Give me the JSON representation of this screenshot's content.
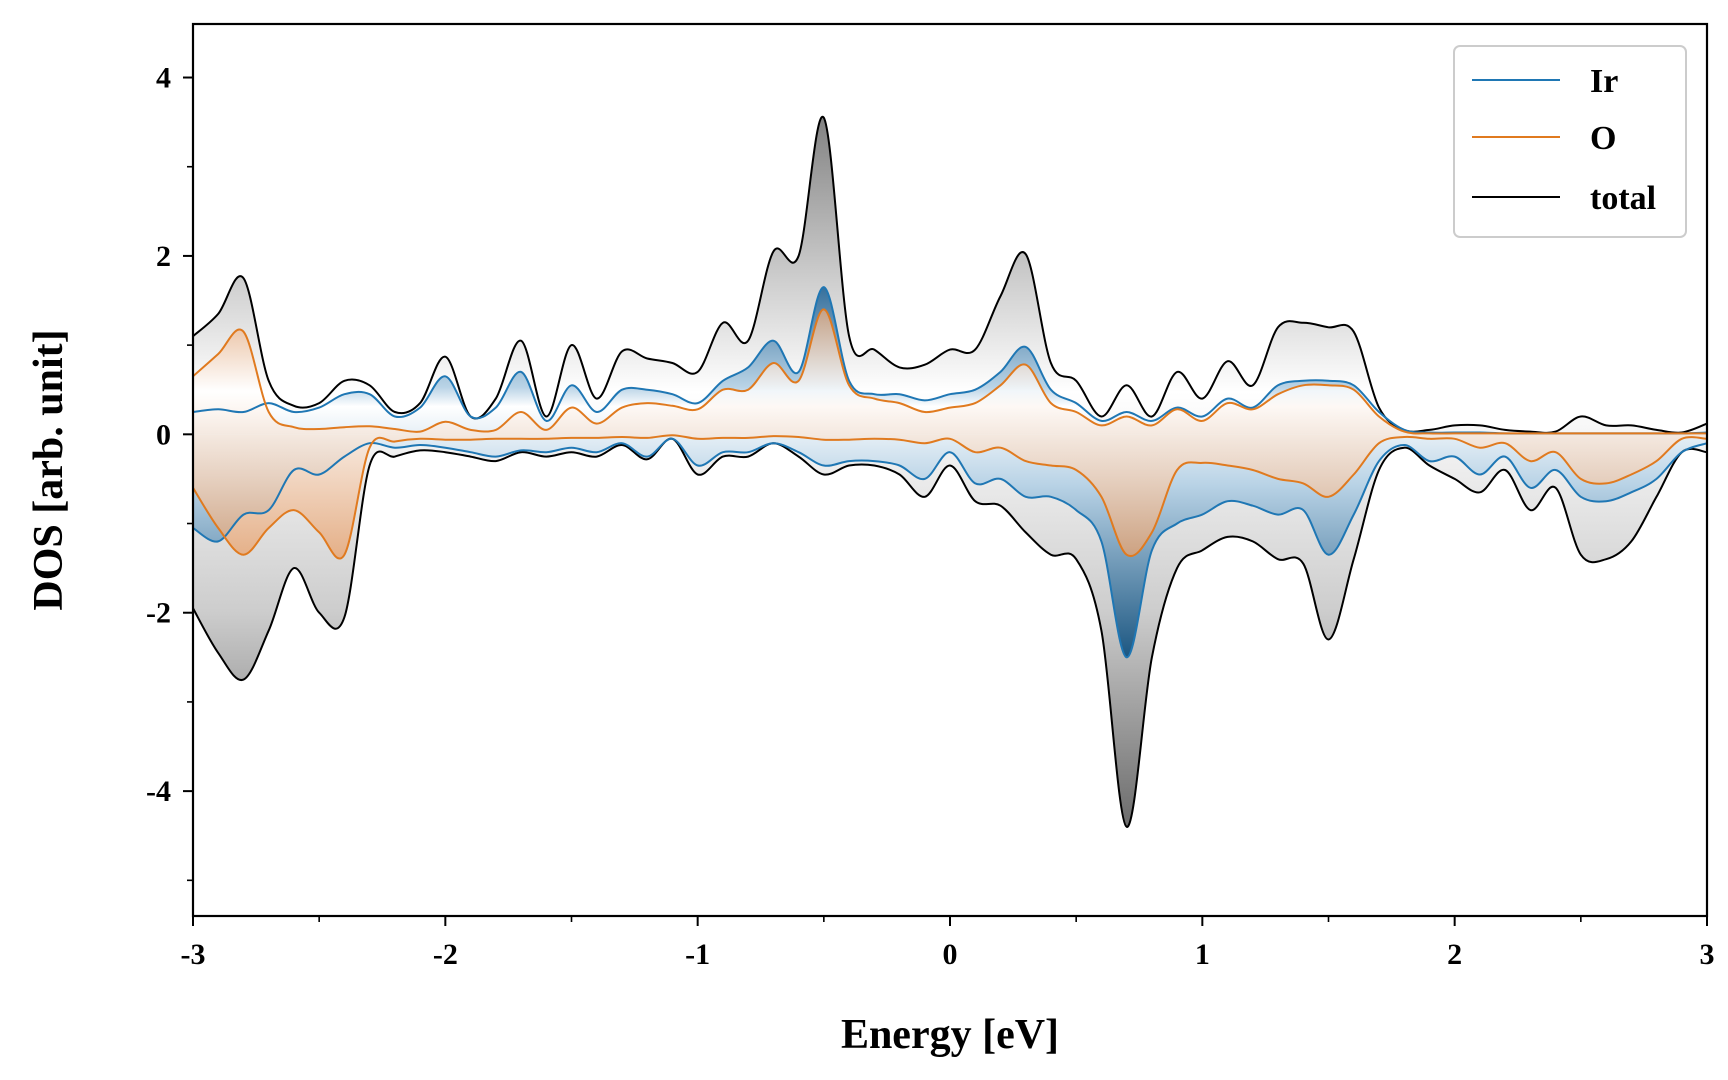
{
  "chart_data": {
    "type": "line",
    "title": "",
    "xlabel": "Energy [eV]",
    "ylabel": "DOS [arb. unit]",
    "xlim": [
      -3,
      3
    ],
    "ylim": [
      -5.4,
      4.6
    ],
    "x_ticks": [
      -3,
      -2,
      -1,
      0,
      1,
      2,
      3
    ],
    "x_tick_labels": [
      "-3",
      "-2",
      "-1",
      "0",
      "1",
      "2",
      "3"
    ],
    "y_ticks": [
      -4,
      -2,
      0,
      2,
      4
    ],
    "y_tick_labels": [
      "-4",
      "-2",
      "0",
      "2",
      "4"
    ],
    "legend_position": "top-right",
    "colors": {
      "Ir": "#1f77b4",
      "O": "#e07a1f",
      "total": "#000000"
    },
    "x": [
      -3.0,
      -2.9,
      -2.8,
      -2.7,
      -2.6,
      -2.5,
      -2.4,
      -2.3,
      -2.2,
      -2.1,
      -2.0,
      -1.9,
      -1.8,
      -1.7,
      -1.6,
      -1.5,
      -1.4,
      -1.3,
      -1.2,
      -1.1,
      -1.0,
      -0.9,
      -0.8,
      -0.7,
      -0.6,
      -0.5,
      -0.4,
      -0.3,
      -0.2,
      -0.1,
      0.0,
      0.1,
      0.2,
      0.3,
      0.4,
      0.5,
      0.6,
      0.7,
      0.8,
      0.9,
      1.0,
      1.1,
      1.2,
      1.3,
      1.4,
      1.5,
      1.6,
      1.7,
      1.8,
      1.9,
      2.0,
      2.1,
      2.2,
      2.3,
      2.4,
      2.5,
      2.6,
      2.7,
      2.8,
      2.9,
      3.0
    ],
    "series": [
      {
        "name": "Ir",
        "spin": "up",
        "values": [
          0.25,
          0.28,
          0.25,
          0.35,
          0.25,
          0.3,
          0.45,
          0.45,
          0.2,
          0.3,
          0.65,
          0.2,
          0.3,
          0.7,
          0.15,
          0.55,
          0.25,
          0.5,
          0.5,
          0.45,
          0.35,
          0.6,
          0.75,
          1.05,
          0.7,
          1.65,
          0.6,
          0.45,
          0.45,
          0.38,
          0.45,
          0.5,
          0.7,
          0.98,
          0.5,
          0.35,
          0.15,
          0.25,
          0.15,
          0.3,
          0.2,
          0.4,
          0.3,
          0.55,
          0.6,
          0.6,
          0.55,
          0.25,
          0.05,
          0.02,
          0.02,
          0.02,
          0.01,
          0.01,
          0.01,
          0.01,
          0.01,
          0.01,
          0.01,
          0.01,
          0.02
        ]
      },
      {
        "name": "Ir",
        "spin": "down",
        "values": [
          -1.05,
          -1.2,
          -0.9,
          -0.85,
          -0.4,
          -0.45,
          -0.25,
          -0.1,
          -0.15,
          -0.12,
          -0.15,
          -0.2,
          -0.25,
          -0.18,
          -0.2,
          -0.15,
          -0.2,
          -0.1,
          -0.25,
          -0.05,
          -0.35,
          -0.2,
          -0.2,
          -0.1,
          -0.2,
          -0.35,
          -0.3,
          -0.3,
          -0.35,
          -0.5,
          -0.2,
          -0.55,
          -0.5,
          -0.7,
          -0.7,
          -0.85,
          -1.2,
          -2.5,
          -1.3,
          -1.0,
          -0.9,
          -0.75,
          -0.8,
          -0.9,
          -0.85,
          -1.35,
          -0.9,
          -0.3,
          -0.12,
          -0.3,
          -0.25,
          -0.45,
          -0.25,
          -0.6,
          -0.4,
          -0.7,
          -0.75,
          -0.65,
          -0.5,
          -0.2,
          -0.1
        ]
      },
      {
        "name": "O",
        "spin": "up",
        "values": [
          0.65,
          0.9,
          1.15,
          0.25,
          0.08,
          0.06,
          0.08,
          0.09,
          0.06,
          0.03,
          0.14,
          0.05,
          0.05,
          0.25,
          0.05,
          0.3,
          0.12,
          0.3,
          0.35,
          0.32,
          0.28,
          0.5,
          0.5,
          0.8,
          0.6,
          1.4,
          0.55,
          0.4,
          0.35,
          0.25,
          0.3,
          0.35,
          0.55,
          0.78,
          0.35,
          0.25,
          0.1,
          0.2,
          0.1,
          0.28,
          0.15,
          0.35,
          0.28,
          0.45,
          0.55,
          0.55,
          0.5,
          0.2,
          0.03,
          0.01,
          0.01,
          0.01,
          0.01,
          0.01,
          0.01,
          0.01,
          0.01,
          0.01,
          0.01,
          0.01,
          0.01
        ]
      },
      {
        "name": "O",
        "spin": "down",
        "values": [
          -0.6,
          -1.05,
          -1.35,
          -1.05,
          -0.85,
          -1.1,
          -1.35,
          -0.15,
          -0.08,
          -0.05,
          -0.06,
          -0.06,
          -0.05,
          -0.05,
          -0.05,
          -0.04,
          -0.04,
          -0.03,
          -0.04,
          -0.01,
          -0.05,
          -0.04,
          -0.04,
          -0.02,
          -0.03,
          -0.06,
          -0.06,
          -0.05,
          -0.06,
          -0.1,
          -0.05,
          -0.2,
          -0.15,
          -0.3,
          -0.35,
          -0.4,
          -0.7,
          -1.35,
          -1.1,
          -0.4,
          -0.32,
          -0.35,
          -0.4,
          -0.5,
          -0.55,
          -0.7,
          -0.45,
          -0.1,
          -0.03,
          -0.05,
          -0.05,
          -0.15,
          -0.1,
          -0.3,
          -0.2,
          -0.5,
          -0.55,
          -0.45,
          -0.3,
          -0.05,
          -0.05
        ]
      },
      {
        "name": "total",
        "spin": "up",
        "values": [
          1.1,
          1.35,
          1.75,
          0.6,
          0.32,
          0.35,
          0.6,
          0.55,
          0.25,
          0.35,
          0.87,
          0.2,
          0.4,
          1.05,
          0.2,
          1.0,
          0.4,
          0.93,
          0.85,
          0.8,
          0.7,
          1.25,
          1.05,
          2.05,
          2.0,
          3.55,
          1.1,
          0.95,
          0.75,
          0.78,
          0.95,
          0.95,
          1.55,
          2.02,
          0.8,
          0.6,
          0.2,
          0.55,
          0.2,
          0.7,
          0.4,
          0.82,
          0.55,
          1.2,
          1.25,
          1.2,
          1.15,
          0.3,
          0.05,
          0.05,
          0.1,
          0.1,
          0.05,
          0.03,
          0.03,
          0.2,
          0.1,
          0.1,
          0.05,
          0.02,
          0.12
        ]
      },
      {
        "name": "total",
        "spin": "down",
        "values": [
          -1.95,
          -2.45,
          -2.75,
          -2.2,
          -1.5,
          -2.0,
          -2.05,
          -0.35,
          -0.25,
          -0.18,
          -0.2,
          -0.25,
          -0.3,
          -0.2,
          -0.25,
          -0.2,
          -0.25,
          -0.12,
          -0.28,
          -0.05,
          -0.45,
          -0.25,
          -0.25,
          -0.1,
          -0.25,
          -0.45,
          -0.35,
          -0.35,
          -0.45,
          -0.7,
          -0.35,
          -0.75,
          -0.8,
          -1.1,
          -1.35,
          -1.4,
          -2.2,
          -4.4,
          -2.5,
          -1.5,
          -1.3,
          -1.15,
          -1.2,
          -1.4,
          -1.45,
          -2.3,
          -1.4,
          -0.4,
          -0.15,
          -0.35,
          -0.5,
          -0.65,
          -0.4,
          -0.85,
          -0.6,
          -1.35,
          -1.4,
          -1.2,
          -0.7,
          -0.2,
          -0.2
        ]
      }
    ]
  }
}
